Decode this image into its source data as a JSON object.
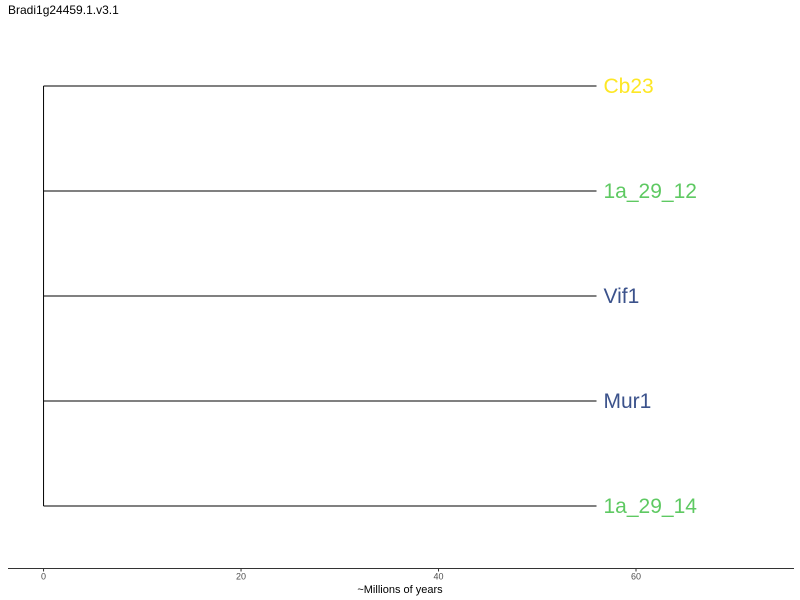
{
  "page": {
    "title": "Bradi1g24459.1.v3.1"
  },
  "chart_data": {
    "type": "dendrogram",
    "title": "Bradi1g24459.1.v3.1",
    "xlabel": "~Millions of years",
    "xlim": [
      -3.6,
      76
    ],
    "xticks": [
      0,
      20,
      40,
      60
    ],
    "xtick_labels": [
      "0",
      "20",
      "40",
      "60"
    ],
    "root_x": 0,
    "tips": [
      {
        "label": "Cb23",
        "x": 56,
        "color": "#fde725"
      },
      {
        "label": "1a_29_12",
        "x": 56,
        "color": "#5ec962"
      },
      {
        "label": "Vif1",
        "x": 56,
        "color": "#3b528b"
      },
      {
        "label": "Mur1",
        "x": 56,
        "color": "#3b528b"
      },
      {
        "label": "1a_29_14",
        "x": 56,
        "color": "#5ec962"
      }
    ],
    "grid": false,
    "legend": "none"
  }
}
